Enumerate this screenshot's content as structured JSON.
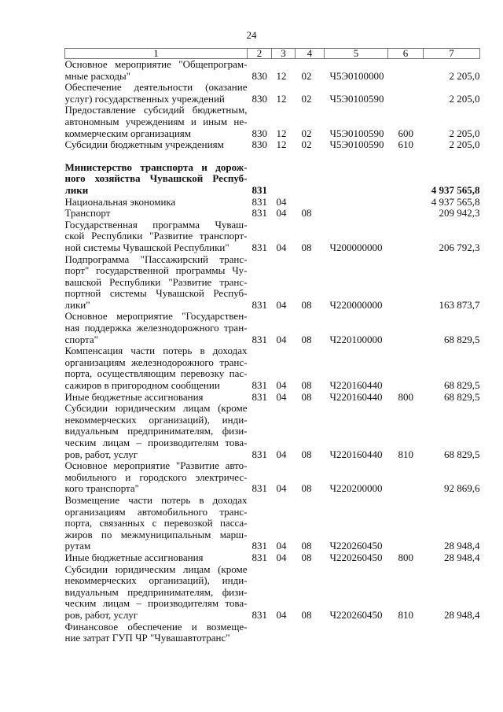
{
  "page_number": "24",
  "header": [
    "1",
    "2",
    "3",
    "4",
    "5",
    "6",
    "7"
  ],
  "rows": [
    {
      "desc": [
        "Основное мероприятие \"Общепрограм-",
        "мные расходы\""
      ],
      "c2": "830",
      "c3": "12",
      "c4": "02",
      "c5": "Ч5Э0100000",
      "c6": "",
      "c7": "2 205,0"
    },
    {
      "desc": [
        "Обеспечение деятельности (оказание",
        "услуг) государственных учреждений"
      ],
      "c2": "830",
      "c3": "12",
      "c4": "02",
      "c5": "Ч5Э0100590",
      "c6": "",
      "c7": "2 205,0"
    },
    {
      "desc": [
        "Предоставление субсидий бюджетным,",
        "автономным учреждениям и иным не-",
        "коммерческим организациям"
      ],
      "c2": "830",
      "c3": "12",
      "c4": "02",
      "c5": "Ч5Э0100590",
      "c6": "600",
      "c7": "2 205,0"
    },
    {
      "desc": [
        "Субсидии бюджетным учреждениям"
      ],
      "c2": "830",
      "c3": "12",
      "c4": "02",
      "c5": "Ч5Э0100590",
      "c6": "610",
      "c7": "2 205,0"
    },
    {
      "spacer": true
    },
    {
      "bold": true,
      "desc": [
        "Министерство транспорта и дорож-",
        "ного хозяйства Чувашской Респуб-",
        "лики"
      ],
      "c2": "831",
      "c3": "",
      "c4": "",
      "c5": "",
      "c6": "",
      "c7": "4 937 565,8"
    },
    {
      "desc": [
        "Национальная экономика"
      ],
      "c2": "831",
      "c3": "04",
      "c4": "",
      "c5": "",
      "c6": "",
      "c7": "4 937 565,8"
    },
    {
      "desc": [
        "Транспорт"
      ],
      "c2": "831",
      "c3": "04",
      "c4": "08",
      "c5": "",
      "c6": "",
      "c7": "209 942,3"
    },
    {
      "desc": [
        "Государственная программа Чуваш-",
        "ской Республики \"Развитие транспорт-",
        "ной системы Чувашской Республики\""
      ],
      "c2": "831",
      "c3": "04",
      "c4": "08",
      "c5": "Ч200000000",
      "c6": "",
      "c7": "206 792,3"
    },
    {
      "desc": [
        "Подпрограмма \"Пассажирский транс-",
        "порт\" государственной программы Чу-",
        "вашской Республики \"Развитие транс-",
        "портной системы Чувашской Респуб-",
        "лики\""
      ],
      "c2": "831",
      "c3": "04",
      "c4": "08",
      "c5": "Ч220000000",
      "c6": "",
      "c7": "163 873,7"
    },
    {
      "desc": [
        "Основное мероприятие \"Государствен-",
        "ная поддержка железнодорожного тран-",
        "спорта\""
      ],
      "c2": "831",
      "c3": "04",
      "c4": "08",
      "c5": "Ч220100000",
      "c6": "",
      "c7": "68 829,5"
    },
    {
      "desc": [
        "Компенсация части потерь в доходах",
        "организациям железнодорожного транс-",
        "порта, осуществляющим перевозку пас-",
        "сажиров в пригородном сообщении"
      ],
      "c2": "831",
      "c3": "04",
      "c4": "08",
      "c5": "Ч220160440",
      "c6": "",
      "c7": "68 829,5"
    },
    {
      "desc": [
        "Иные бюджетные ассигнования"
      ],
      "c2": "831",
      "c3": "04",
      "c4": "08",
      "c5": "Ч220160440",
      "c6": "800",
      "c7": "68 829,5"
    },
    {
      "desc": [
        "Субсидии юридическим лицам (кроме",
        "некоммерческих организаций), инди-",
        "видуальным предпринимателям, физи-",
        "ческим лицам – производителям това-",
        "ров, работ, услуг"
      ],
      "c2": "831",
      "c3": "04",
      "c4": "08",
      "c5": "Ч220160440",
      "c6": "810",
      "c7": "68 829,5"
    },
    {
      "desc": [
        "Основное мероприятие \"Развитие авто-",
        "мобильного и городского электричес-",
        "кого транспорта\""
      ],
      "c2": "831",
      "c3": "04",
      "c4": "08",
      "c5": "Ч220200000",
      "c6": "",
      "c7": "92 869,6"
    },
    {
      "desc": [
        "Возмещение части потерь в доходах",
        "организациям автомобильного транс-",
        "порта, связанных с перевозкой пасса-",
        "жиров по межмуниципальным марш-",
        "рутам"
      ],
      "c2": "831",
      "c3": "04",
      "c4": "08",
      "c5": "Ч220260450",
      "c6": "",
      "c7": "28 948,4"
    },
    {
      "desc": [
        "Иные бюджетные ассигнования"
      ],
      "c2": "831",
      "c3": "04",
      "c4": "08",
      "c5": "Ч220260450",
      "c6": "800",
      "c7": "28 948,4"
    },
    {
      "desc": [
        "Субсидии юридическим лицам (кроме",
        "некоммерческих организаций), инди-",
        "видуальным предпринимателям, физи-",
        "ческим лицам – производителям това-",
        "ров, работ, услуг"
      ],
      "c2": "831",
      "c3": "04",
      "c4": "08",
      "c5": "Ч220260450",
      "c6": "810",
      "c7": "28 948,4"
    },
    {
      "desc": [
        "Финансовое обеспечение и возмеще-",
        "ние затрат ГУП ЧР \"Чувашавтотранс\""
      ],
      "c2": "",
      "c3": "",
      "c4": "",
      "c5": "",
      "c6": "",
      "c7": ""
    }
  ]
}
